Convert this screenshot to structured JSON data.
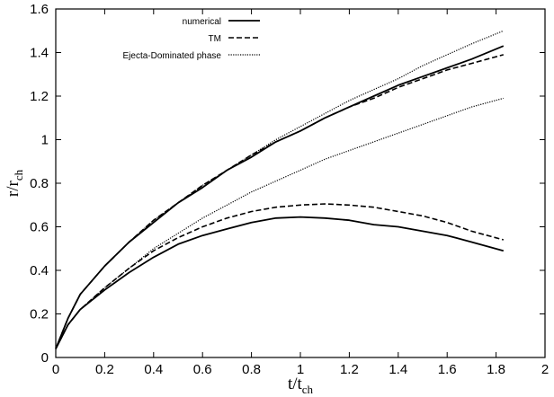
{
  "chart_data": {
    "type": "line",
    "title": "",
    "xlabel": {
      "main": "t/t",
      "sub": "ch"
    },
    "ylabel": {
      "main": "r/r",
      "sub": "ch"
    },
    "xlim": [
      0,
      2
    ],
    "ylim": [
      0,
      1.6
    ],
    "x_ticks": [
      "0",
      "0.2",
      "0.4",
      "0.6",
      "0.8",
      "1",
      "1.2",
      "1.4",
      "1.6",
      "1.8",
      "2"
    ],
    "y_ticks": [
      "0",
      "0.2",
      "0.4",
      "0.6",
      "0.8",
      "1",
      "1.2",
      "1.4",
      "1.6"
    ],
    "grid": false,
    "legend_position": "top-left",
    "series": [
      {
        "name": "numerical",
        "style": "solid",
        "curve": "outer",
        "points": [
          [
            0,
            0.04
          ],
          [
            0.05,
            0.18
          ],
          [
            0.1,
            0.29
          ],
          [
            0.2,
            0.42
          ],
          [
            0.3,
            0.53
          ],
          [
            0.4,
            0.62
          ],
          [
            0.5,
            0.71
          ],
          [
            0.6,
            0.78
          ],
          [
            0.7,
            0.86
          ],
          [
            0.8,
            0.92
          ],
          [
            0.9,
            0.99
          ],
          [
            1.0,
            1.04
          ],
          [
            1.1,
            1.1
          ],
          [
            1.2,
            1.15
          ],
          [
            1.3,
            1.2
          ],
          [
            1.4,
            1.25
          ],
          [
            1.5,
            1.29
          ],
          [
            1.6,
            1.33
          ],
          [
            1.7,
            1.37
          ],
          [
            1.83,
            1.43
          ]
        ]
      },
      {
        "name": "",
        "style": "solid",
        "curve": "inner",
        "points": [
          [
            0,
            0.04
          ],
          [
            0.05,
            0.15
          ],
          [
            0.1,
            0.22
          ],
          [
            0.2,
            0.31
          ],
          [
            0.3,
            0.39
          ],
          [
            0.4,
            0.46
          ],
          [
            0.5,
            0.52
          ],
          [
            0.6,
            0.56
          ],
          [
            0.7,
            0.59
          ],
          [
            0.8,
            0.62
          ],
          [
            0.9,
            0.64
          ],
          [
            1.0,
            0.645
          ],
          [
            1.1,
            0.64
          ],
          [
            1.2,
            0.63
          ],
          [
            1.3,
            0.61
          ],
          [
            1.4,
            0.6
          ],
          [
            1.5,
            0.58
          ],
          [
            1.6,
            0.56
          ],
          [
            1.7,
            0.53
          ],
          [
            1.83,
            0.49
          ]
        ]
      },
      {
        "name": "TM",
        "style": "dashed",
        "curve": "outer",
        "points": [
          [
            0,
            0.04
          ],
          [
            0.05,
            0.18
          ],
          [
            0.1,
            0.29
          ],
          [
            0.2,
            0.42
          ],
          [
            0.3,
            0.53
          ],
          [
            0.4,
            0.63
          ],
          [
            0.5,
            0.71
          ],
          [
            0.6,
            0.79
          ],
          [
            0.7,
            0.86
          ],
          [
            0.8,
            0.93
          ],
          [
            0.9,
            0.99
          ],
          [
            1.0,
            1.04
          ],
          [
            1.1,
            1.1
          ],
          [
            1.2,
            1.15
          ],
          [
            1.3,
            1.19
          ],
          [
            1.4,
            1.24
          ],
          [
            1.5,
            1.28
          ],
          [
            1.6,
            1.32
          ],
          [
            1.7,
            1.35
          ],
          [
            1.83,
            1.39
          ]
        ]
      },
      {
        "name": "",
        "style": "dashed",
        "curve": "inner",
        "points": [
          [
            0,
            0.04
          ],
          [
            0.05,
            0.15
          ],
          [
            0.1,
            0.22
          ],
          [
            0.2,
            0.32
          ],
          [
            0.3,
            0.41
          ],
          [
            0.4,
            0.49
          ],
          [
            0.5,
            0.55
          ],
          [
            0.6,
            0.6
          ],
          [
            0.7,
            0.64
          ],
          [
            0.8,
            0.67
          ],
          [
            0.9,
            0.69
          ],
          [
            1.0,
            0.7
          ],
          [
            1.1,
            0.705
          ],
          [
            1.2,
            0.7
          ],
          [
            1.3,
            0.69
          ],
          [
            1.4,
            0.67
          ],
          [
            1.5,
            0.65
          ],
          [
            1.6,
            0.62
          ],
          [
            1.7,
            0.58
          ],
          [
            1.83,
            0.54
          ]
        ]
      },
      {
        "name": "Ejecta-Dominated phase",
        "style": "dotted",
        "curve": "outer",
        "points": [
          [
            0,
            0.04
          ],
          [
            0.05,
            0.18
          ],
          [
            0.1,
            0.29
          ],
          [
            0.2,
            0.42
          ],
          [
            0.3,
            0.53
          ],
          [
            0.4,
            0.63
          ],
          [
            0.5,
            0.71
          ],
          [
            0.6,
            0.79
          ],
          [
            0.7,
            0.86
          ],
          [
            0.8,
            0.93
          ],
          [
            0.9,
            1.0
          ],
          [
            1.0,
            1.06
          ],
          [
            1.1,
            1.12
          ],
          [
            1.2,
            1.18
          ],
          [
            1.3,
            1.23
          ],
          [
            1.4,
            1.28
          ],
          [
            1.5,
            1.34
          ],
          [
            1.6,
            1.39
          ],
          [
            1.7,
            1.44
          ],
          [
            1.83,
            1.5
          ]
        ]
      },
      {
        "name": "",
        "style": "dotted",
        "curve": "inner",
        "points": [
          [
            0,
            0.04
          ],
          [
            0.05,
            0.15
          ],
          [
            0.1,
            0.22
          ],
          [
            0.2,
            0.32
          ],
          [
            0.3,
            0.41
          ],
          [
            0.4,
            0.5
          ],
          [
            0.5,
            0.57
          ],
          [
            0.6,
            0.64
          ],
          [
            0.7,
            0.7
          ],
          [
            0.8,
            0.76
          ],
          [
            0.9,
            0.81
          ],
          [
            1.0,
            0.86
          ],
          [
            1.1,
            0.91
          ],
          [
            1.2,
            0.95
          ],
          [
            1.3,
            0.99
          ],
          [
            1.4,
            1.03
          ],
          [
            1.5,
            1.07
          ],
          [
            1.6,
            1.11
          ],
          [
            1.7,
            1.15
          ],
          [
            1.83,
            1.19
          ]
        ]
      }
    ]
  }
}
